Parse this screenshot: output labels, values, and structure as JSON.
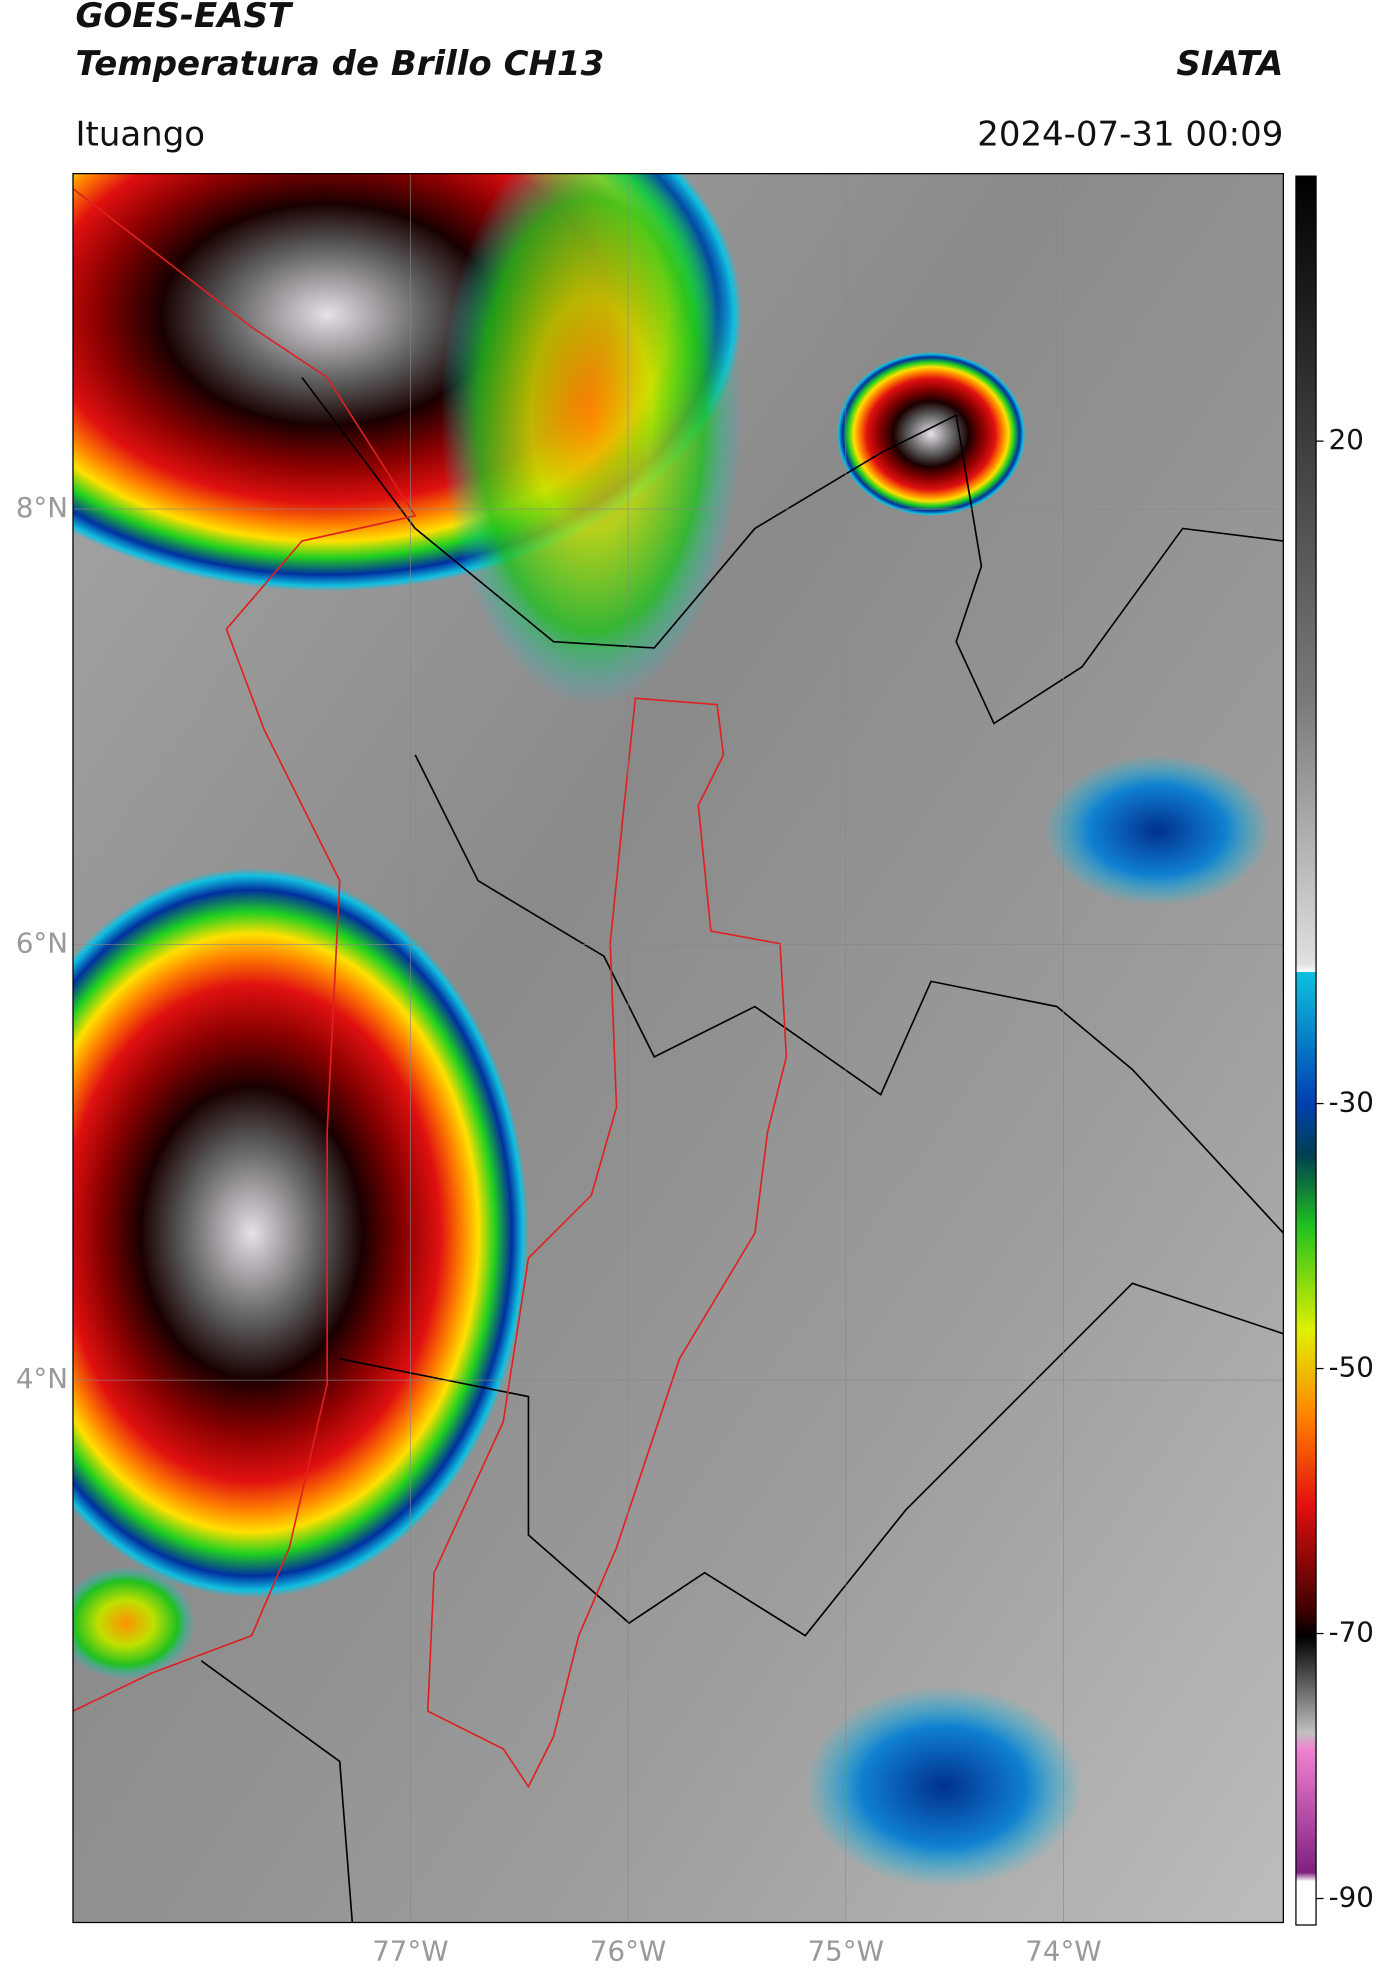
{
  "header": {
    "satellite": "GOES-EAST",
    "product": "Temperatura de Brillo CH13",
    "source": "SIATA",
    "location": "Ituango",
    "datetime": "2024-07-31 00:09"
  },
  "map": {
    "latlim": [
      1.51,
      9.54
    ],
    "lonlim": [
      -78.55,
      -72.99
    ],
    "latticks": [
      {
        "value": 8,
        "label": "8°N"
      },
      {
        "value": 6,
        "label": "6°N"
      },
      {
        "value": 4,
        "label": "4°N"
      }
    ],
    "lonticks": [
      {
        "value": -77,
        "label": "77°W"
      },
      {
        "value": -76,
        "label": "76°W"
      },
      {
        "value": -75,
        "label": "75°W"
      },
      {
        "value": -74,
        "label": "74°W"
      }
    ],
    "grid": true
  },
  "colorbar": {
    "lim": [
      -92,
      40
    ],
    "ticks": [
      20,
      -30,
      -50,
      -70,
      -90
    ]
  }
}
